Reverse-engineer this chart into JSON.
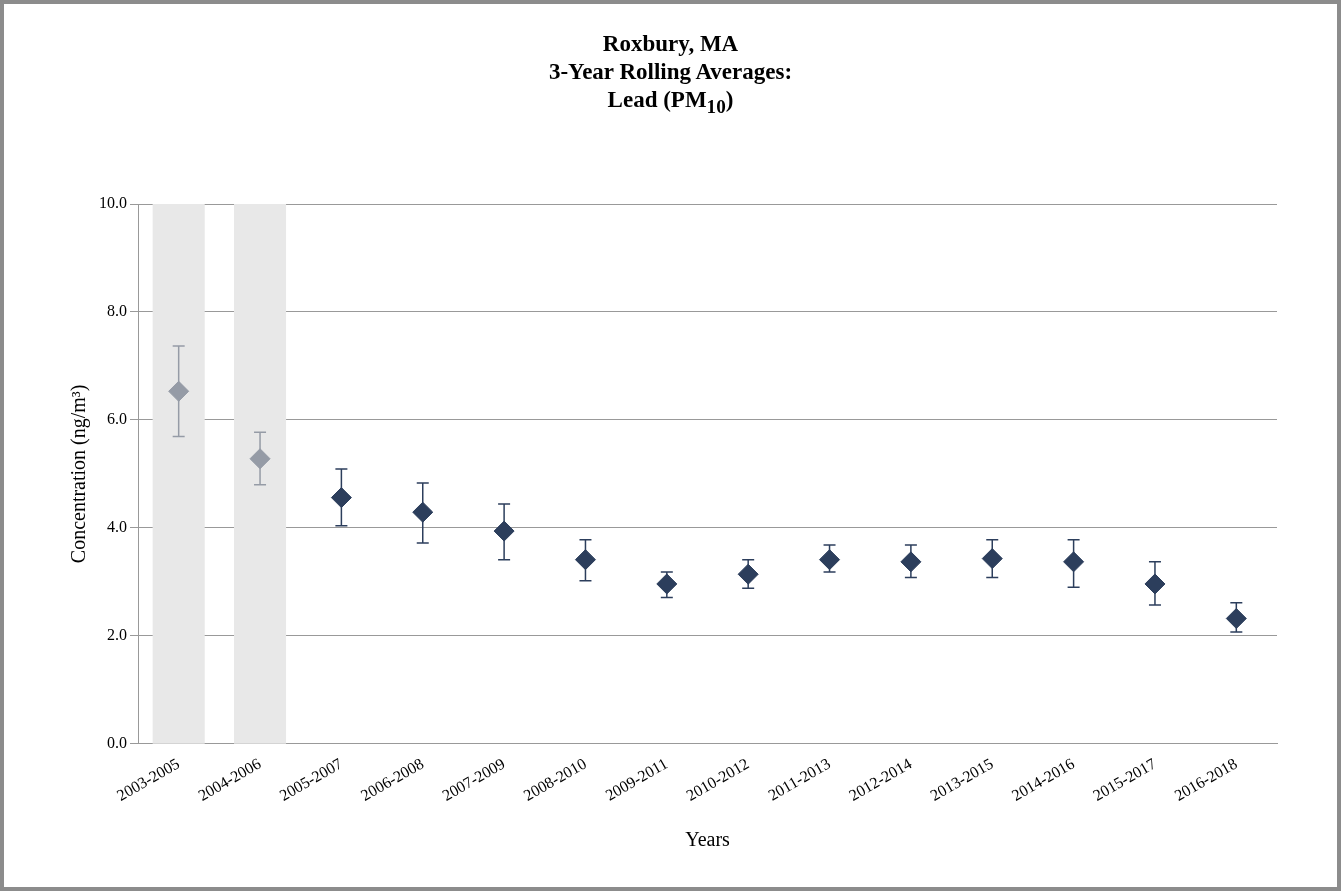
{
  "chart_data": {
    "type": "scatter",
    "title": "Roxbury, MA\n3-Year Rolling Averages:\nLead (PM$_{10}$)",
    "xlabel": "Years",
    "ylabel": "Concentration (ng/m³)",
    "categories": [
      "2003-2005",
      "2004-2006",
      "2005-2007",
      "2006-2008",
      "2007-2009",
      "2008-2010",
      "2009-2011",
      "2010-2012",
      "2011-2013",
      "2012-2014",
      "2013-2015",
      "2014-2016",
      "2015-2017",
      "2016-2018"
    ],
    "values": [
      6.53,
      5.28,
      4.56,
      4.29,
      3.94,
      3.41,
      2.96,
      3.14,
      3.41,
      3.37,
      3.43,
      3.37,
      2.96,
      2.32
    ],
    "errors": [
      [
        5.69,
        7.37
      ],
      [
        4.8,
        5.77
      ],
      [
        4.04,
        5.09
      ],
      [
        3.72,
        4.83
      ],
      [
        3.41,
        4.44
      ],
      [
        3.02,
        3.78
      ],
      [
        2.71,
        3.18
      ],
      [
        2.88,
        3.41
      ],
      [
        3.18,
        3.68
      ],
      [
        3.08,
        3.68
      ],
      [
        3.08,
        3.78
      ],
      [
        2.9,
        3.78
      ],
      [
        2.57,
        3.37
      ],
      [
        2.07,
        2.61
      ]
    ],
    "colors": [
      "#959ba6",
      "#959ba6",
      "#2c3e5c",
      "#2c3e5c",
      "#2c3e5c",
      "#2c3e5c",
      "#2c3e5c",
      "#2c3e5c",
      "#2c3e5c",
      "#2c3e5c",
      "#2c3e5c",
      "#2c3e5c",
      "#2c3e5c",
      "#2c3e5c"
    ],
    "bands": [
      {
        "axis": "x",
        "from": "2003-2005",
        "to": "2003-2005",
        "color": "#e8e8e8"
      },
      {
        "axis": "x",
        "from": "2004-2006",
        "to": "2004-2006",
        "color": "#e8e8e8"
      }
    ],
    "ylim": [
      0,
      10
    ],
    "yticks": [
      {
        "value": 0,
        "label": "0.0"
      },
      {
        "value": 2,
        "label": "2.0"
      },
      {
        "value": 4,
        "label": "4.0"
      },
      {
        "value": 6,
        "label": "6.0"
      },
      {
        "value": 8,
        "label": "8.0"
      },
      {
        "value": 10,
        "label": "10.0"
      }
    ],
    "grid": "y",
    "marker": "diamond",
    "legend": false
  }
}
